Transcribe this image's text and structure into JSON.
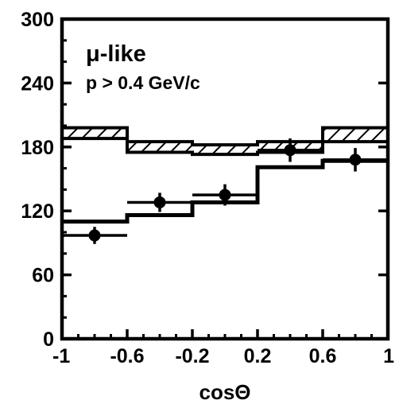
{
  "chart_data": {
    "type": "histogram",
    "annotations": [
      "μ-like",
      "p > 0.4 GeV/c"
    ],
    "xlabel": "cosΘ",
    "ylabel": "",
    "xlim": [
      -1,
      1
    ],
    "ylim": [
      0,
      300
    ],
    "x_ticks": [
      "-1",
      "-0.6",
      "-0.2",
      "0.2",
      "0.6",
      "1"
    ],
    "y_ticks": [
      "0",
      "60",
      "120",
      "180",
      "240",
      "300"
    ],
    "bin_edges": [
      -1,
      -0.6,
      -0.2,
      0.2,
      0.6,
      1
    ],
    "series": [
      {
        "style": "hatched-band",
        "lower": [
          188,
          175,
          173,
          175,
          185
        ],
        "upper": [
          198,
          185,
          182,
          185,
          198
        ]
      },
      {
        "style": "step-thick",
        "values": [
          110,
          116,
          128,
          161,
          167
        ]
      },
      {
        "style": "data-points",
        "x": [
          -0.8,
          -0.4,
          0.0,
          0.4,
          0.8
        ],
        "y": [
          97,
          128,
          135,
          177,
          168
        ],
        "yerr": [
          8,
          9,
          10,
          11,
          11
        ],
        "xerr": [
          0.2,
          0.2,
          0.2,
          0.2,
          0.2
        ]
      }
    ]
  }
}
